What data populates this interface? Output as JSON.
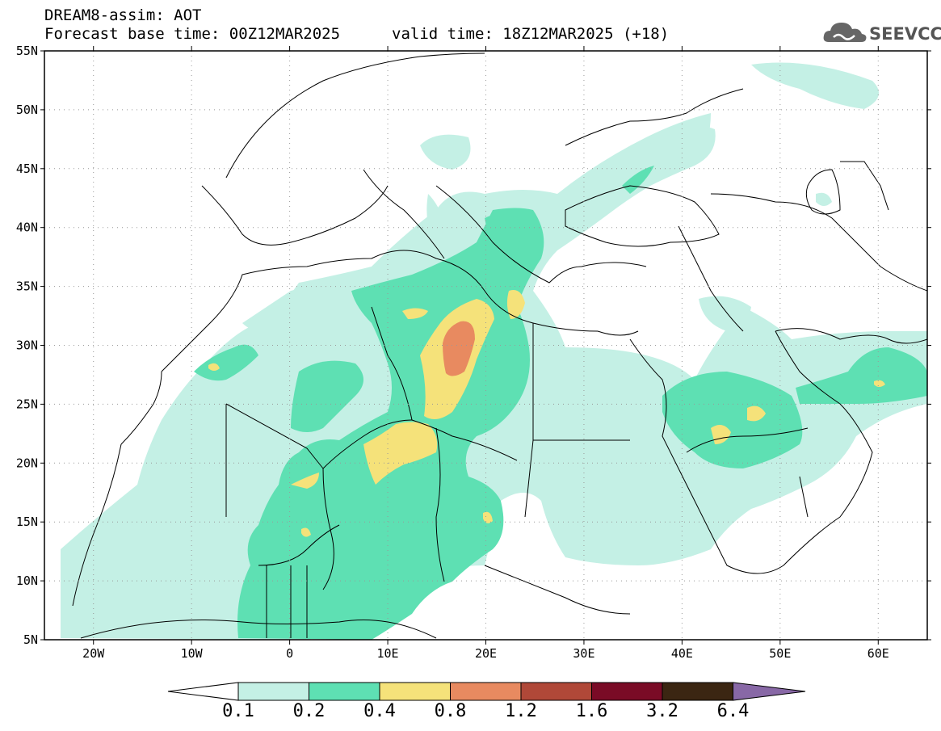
{
  "header": {
    "title": "DREAM8-assim: AOT",
    "base_time": "Forecast base time: 00Z12MAR2025",
    "valid_time": "valid time: 18Z12MAR2025 (+18)"
  },
  "logo": {
    "text": "SEEVCCC",
    "icon": "cloud-logo-icon"
  },
  "map": {
    "lon_range": [
      -25,
      65
    ],
    "lat_range": [
      5,
      55
    ],
    "lat_labels": [
      "5N",
      "10N",
      "15N",
      "20N",
      "25N",
      "30N",
      "35N",
      "40N",
      "45N",
      "50N",
      "55N"
    ],
    "lon_labels": [
      "20W",
      "10W",
      "0",
      "10E",
      "20E",
      "30E",
      "40E",
      "50E",
      "60E"
    ]
  },
  "colorbar": {
    "colors": [
      "#c4f0e5",
      "#5ee0b3",
      "#f5e27a",
      "#e88a60",
      "#b04838",
      "#7a0b26",
      "#3b2612",
      "#8868a6"
    ],
    "labels": [
      "0.1",
      "0.2",
      "0.4",
      "0.8",
      "1.2",
      "1.6",
      "3.2",
      "6.4"
    ]
  }
}
